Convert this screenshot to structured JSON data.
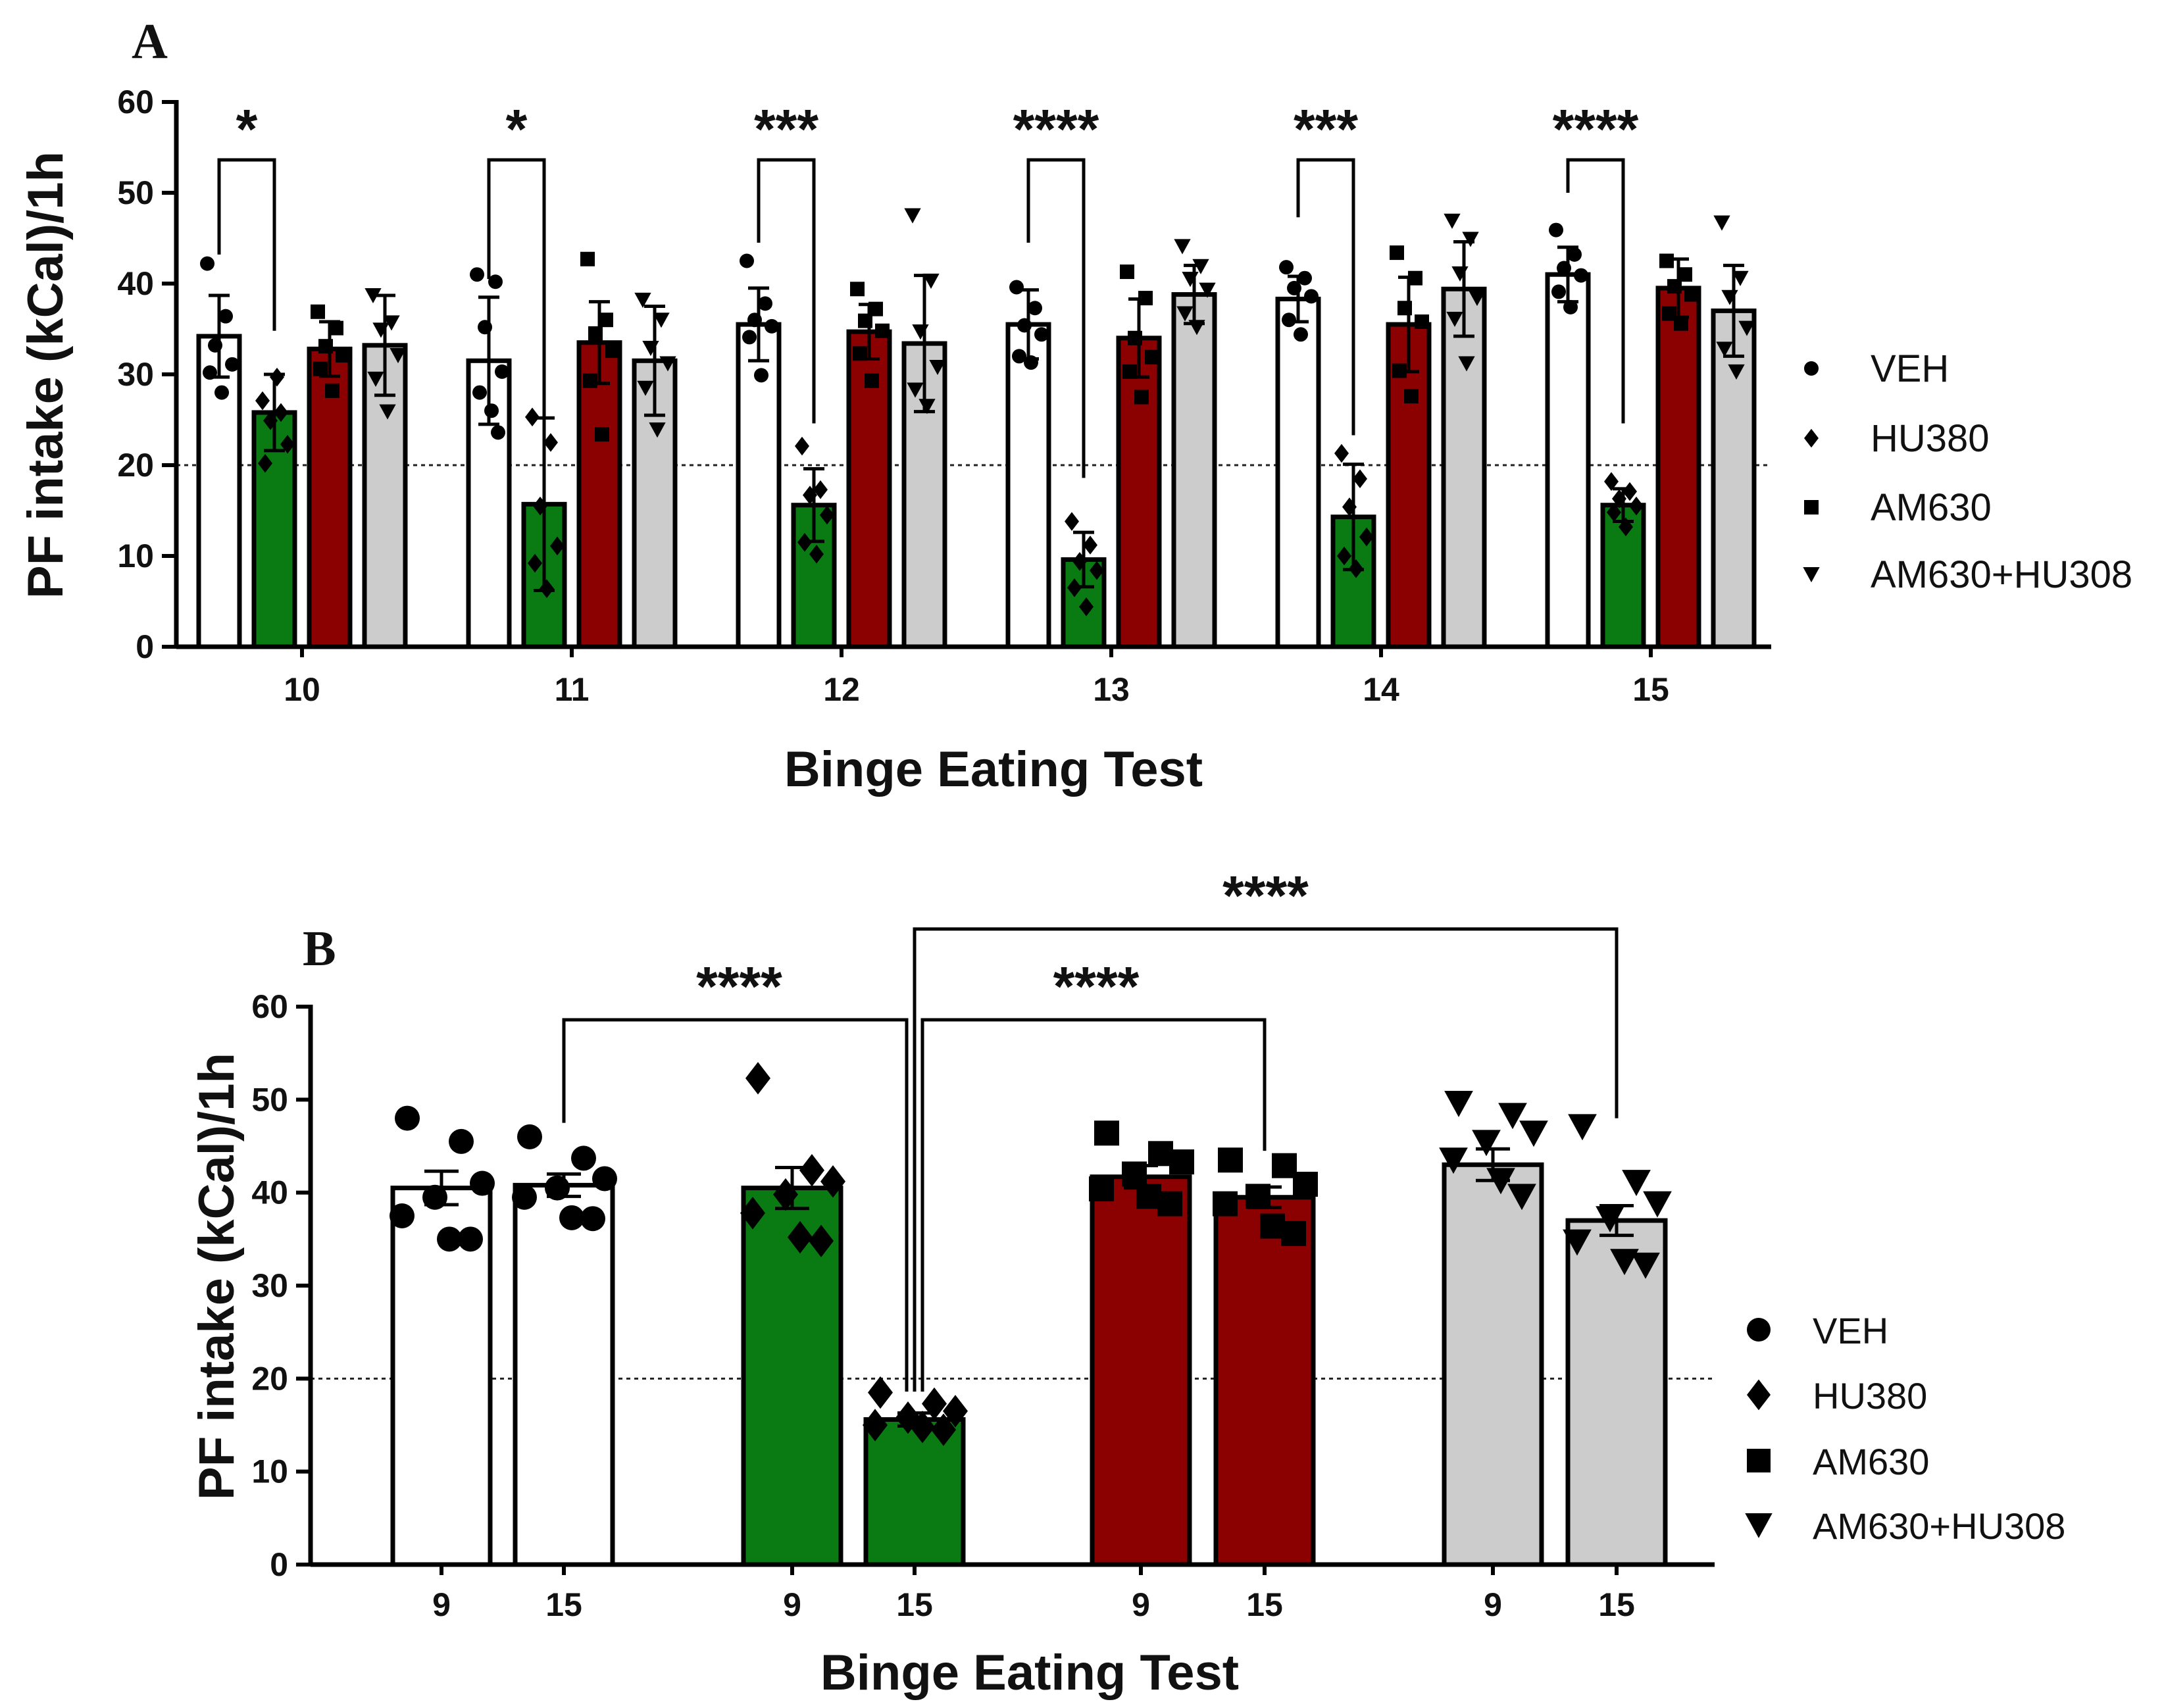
{
  "colors": {
    "VEH": "#ffffff",
    "HU380": "#0a7a12",
    "AM630": "#8b0000",
    "AM630+HU308": "#cccccc",
    "axis": "#111111"
  },
  "chart_data": [
    {
      "panel": "A",
      "type": "bar",
      "title": "",
      "xlabel": "Binge Eating Test",
      "ylabel": "PF intake (kCal)/1h",
      "ylim": [
        0,
        60
      ],
      "yticks": [
        "0",
        "10",
        "20",
        "30",
        "40",
        "50",
        "60"
      ],
      "reference_line": 20,
      "categories": [
        "10",
        "11",
        "12",
        "13",
        "14",
        "15"
      ],
      "series": [
        {
          "name": "VEH",
          "marker": "circle",
          "values": [
            34.2,
            31.5,
            35.5,
            35.5,
            38.3,
            41.0
          ],
          "errors": [
            4.5,
            7.0,
            4.0,
            3.8,
            2.5,
            3.0
          ]
        },
        {
          "name": "HU380",
          "marker": "diamond",
          "values": [
            25.8,
            15.7,
            15.6,
            9.6,
            14.3,
            15.6
          ],
          "errors": [
            4.2,
            9.5,
            4.0,
            3.0,
            5.8,
            1.8
          ]
        },
        {
          "name": "AM630",
          "marker": "square",
          "values": [
            32.8,
            33.5,
            34.7,
            34.0,
            35.5,
            39.5
          ],
          "errors": [
            3.0,
            4.5,
            3.0,
            4.3,
            5.2,
            3.2
          ]
        },
        {
          "name": "AM630+HU308",
          "marker": "triangle-down",
          "values": [
            33.2,
            31.5,
            33.4,
            38.8,
            39.4,
            37.0
          ],
          "errors": [
            5.5,
            6.0,
            7.5,
            3.2,
            5.2,
            5.0
          ]
        }
      ],
      "points": {
        "VEH": [
          [
            42.2,
            36.4,
            33.2,
            31.1,
            30.2,
            28.0
          ],
          [
            41.0,
            40.2,
            35.2,
            30.3,
            28.0,
            26.0,
            23.6
          ],
          [
            42.5,
            37.8,
            36.0,
            35.3,
            34.1,
            29.9
          ],
          [
            39.6,
            37.3,
            35.4,
            34.4,
            32.0,
            31.3
          ],
          [
            41.8,
            40.6,
            39.5,
            38.6,
            36.0,
            34.4
          ],
          [
            45.9,
            43.2,
            41.7,
            40.9,
            39.1,
            37.4
          ]
        ],
        "HU380": [
          [
            27.1,
            25.8,
            24.9,
            22.3,
            20.2,
            29.7
          ],
          [
            25.3,
            22.5,
            15.5,
            11.1,
            9.2,
            6.4
          ],
          [
            22.1,
            17.3,
            16.7,
            14.5,
            11.5,
            10.2
          ],
          [
            13.8,
            11.2,
            9.4,
            8.4,
            6.5,
            4.4
          ],
          [
            21.3,
            18.5,
            15.4,
            12.1,
            10.0,
            8.6
          ],
          [
            18.2,
            17.1,
            16.3,
            15.5,
            14.8,
            13.2
          ]
        ],
        "AM630": [
          [
            36.9,
            35.1,
            33.1,
            32.1,
            30.6,
            28.2
          ],
          [
            42.7,
            36.0,
            34.5,
            32.6,
            29.3,
            23.4
          ],
          [
            39.4,
            37.2,
            35.9,
            34.8,
            32.3,
            29.3
          ],
          [
            41.3,
            38.4,
            34.0,
            31.9,
            30.3,
            27.5
          ],
          [
            43.4,
            40.6,
            37.3,
            35.8,
            30.4,
            27.6
          ],
          [
            42.5,
            41.0,
            39.7,
            38.8,
            36.7,
            35.6
          ]
        ],
        "AM630+HU308": [
          [
            38.7,
            35.7,
            34.9,
            32.1,
            29.5,
            25.9
          ],
          [
            38.2,
            36.0,
            32.9,
            31.2,
            28.5,
            23.9
          ],
          [
            47.5,
            40.3,
            34.7,
            30.8,
            28.3,
            26.5
          ],
          [
            44.1,
            41.9,
            40.5,
            39.3,
            36.7,
            35.2
          ],
          [
            46.9,
            44.9,
            41.1,
            38.4,
            36.1,
            31.2
          ],
          [
            46.7,
            40.6,
            38.5,
            35.1,
            32.8,
            30.3
          ]
        ]
      },
      "significance": [
        {
          "category": "10",
          "from": "VEH",
          "to": "HU380",
          "label": "*"
        },
        {
          "category": "11",
          "from": "VEH",
          "to": "HU380",
          "label": "*"
        },
        {
          "category": "12",
          "from": "VEH",
          "to": "HU380",
          "label": "***"
        },
        {
          "category": "13",
          "from": "VEH",
          "to": "HU380",
          "label": "****"
        },
        {
          "category": "14",
          "from": "VEH",
          "to": "HU380",
          "label": "***"
        },
        {
          "category": "15",
          "from": "VEH",
          "to": "HU380",
          "label": "****"
        }
      ],
      "legend": {
        "position": "right",
        "entries": [
          "VEH",
          "HU380",
          "AM630",
          "AM630+HU308"
        ]
      }
    },
    {
      "panel": "B",
      "type": "bar",
      "title": "",
      "xlabel": "Binge Eating Test",
      "ylabel": "PF intake (kCal)/1h",
      "ylim": [
        0,
        60
      ],
      "yticks": [
        "0",
        "10",
        "20",
        "30",
        "40",
        "50",
        "60"
      ],
      "reference_line": 20,
      "groups": [
        {
          "name": "VEH",
          "marker": "circle",
          "bars": [
            {
              "label": "9",
              "value": 40.5,
              "sem": 1.8,
              "points": [
                48.0,
                45.5,
                41.0,
                39.5,
                37.5,
                35.0,
                35.0
              ]
            },
            {
              "label": "15",
              "value": 40.8,
              "sem": 1.2,
              "points": [
                46.0,
                43.7,
                41.5,
                40.5,
                39.5,
                37.3,
                37.2
              ]
            }
          ]
        },
        {
          "name": "HU380",
          "marker": "diamond",
          "bars": [
            {
              "label": "9",
              "value": 40.5,
              "sem": 2.2,
              "points": [
                52.3,
                42.4,
                41.2,
                39.8,
                37.8,
                35.2,
                34.8
              ]
            },
            {
              "label": "15",
              "value": 15.6,
              "sem": 0.7,
              "points": [
                18.5,
                17.3,
                16.5,
                15.8,
                15.0,
                14.8,
                14.5
              ]
            }
          ]
        },
        {
          "name": "AM630",
          "marker": "square",
          "bars": [
            {
              "label": "9",
              "value": 41.7,
              "sem": 1.2,
              "points": [
                46.4,
                44.2,
                43.3,
                42.0,
                40.4,
                39.6,
                38.8
              ]
            },
            {
              "label": "15",
              "value": 39.5,
              "sem": 1.1,
              "points": [
                43.5,
                42.9,
                40.9,
                39.6,
                38.8,
                36.4,
                35.6
              ]
            }
          ]
        },
        {
          "name": "AM630+HU308",
          "marker": "triangle-down",
          "bars": [
            {
              "label": "9",
              "value": 43.0,
              "sem": 1.7,
              "points": [
                49.6,
                48.3,
                46.4,
                45.4,
                43.5,
                41.3,
                39.6
              ]
            },
            {
              "label": "15",
              "value": 37.0,
              "sem": 1.6,
              "points": [
                47.1,
                41.1,
                38.8,
                37.2,
                34.7,
                32.6,
                32.2
              ]
            }
          ]
        }
      ],
      "significance": [
        {
          "from": "VEH 15",
          "to": "HU380 15",
          "label": "****"
        },
        {
          "from": "HU380 15",
          "to": "AM630 15",
          "label": "****"
        },
        {
          "from": "HU380 15",
          "to": "AM630+HU308 15",
          "label": "****"
        }
      ],
      "legend": {
        "position": "right",
        "entries": [
          "VEH",
          "HU380",
          "AM630",
          "AM630+HU308"
        ]
      }
    }
  ]
}
